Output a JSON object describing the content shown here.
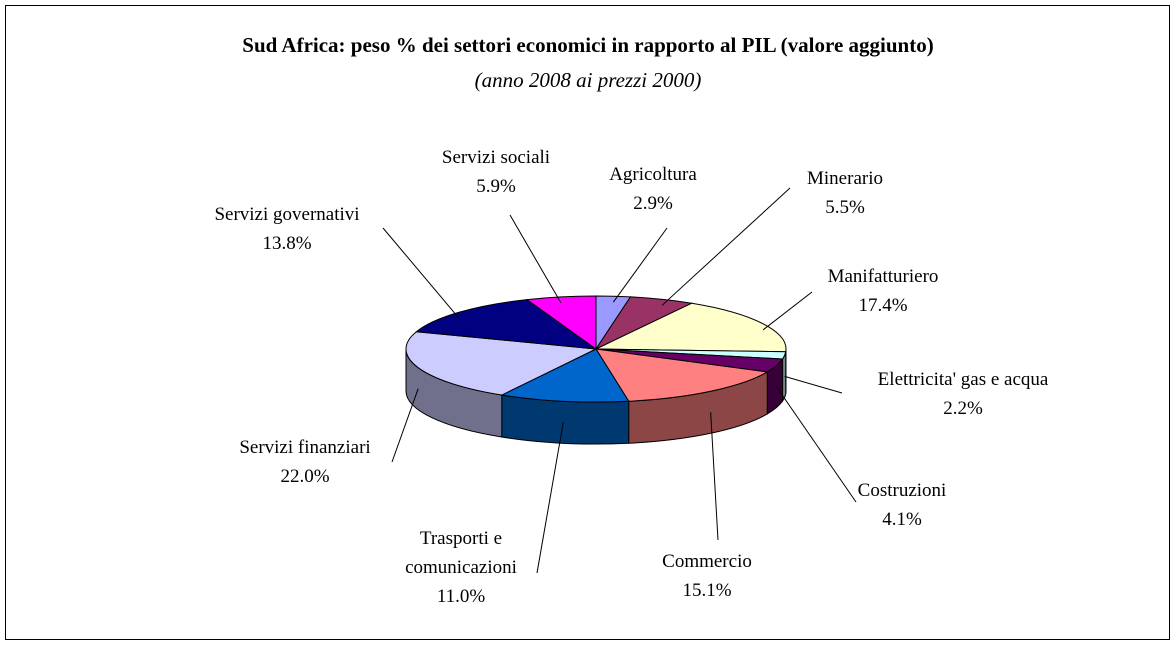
{
  "chart_data": {
    "type": "pie",
    "title": "Sud Africa: peso % dei settori economici in rapporto al PIL (valore aggiunto)",
    "subtitle": "(anno 2008 ai prezzi 2000)",
    "categories": [
      "Agricoltura",
      "Minerario",
      "Manifatturiero",
      "Elettricita' gas e acqua",
      "Costruzioni",
      "Commercio",
      "Trasporti e comunicazioni",
      "Servizi finanziari",
      "Servizi governativi",
      "Servizi sociali"
    ],
    "values": [
      2.9,
      5.5,
      17.4,
      2.2,
      4.1,
      15.1,
      11.0,
      22.0,
      13.8,
      5.9
    ],
    "value_labels": [
      "2.9%",
      "5.5%",
      "17.4%",
      "2.2%",
      "4.1%",
      "15.1%",
      "11.0%",
      "22.0%",
      "13.8%",
      "5.9%"
    ],
    "colors": [
      "#9999ff",
      "#993366",
      "#ffffcc",
      "#ccffff",
      "#660066",
      "#ff8080",
      "#0066cc",
      "#ccccff",
      "#000080",
      "#ff00ff"
    ]
  }
}
